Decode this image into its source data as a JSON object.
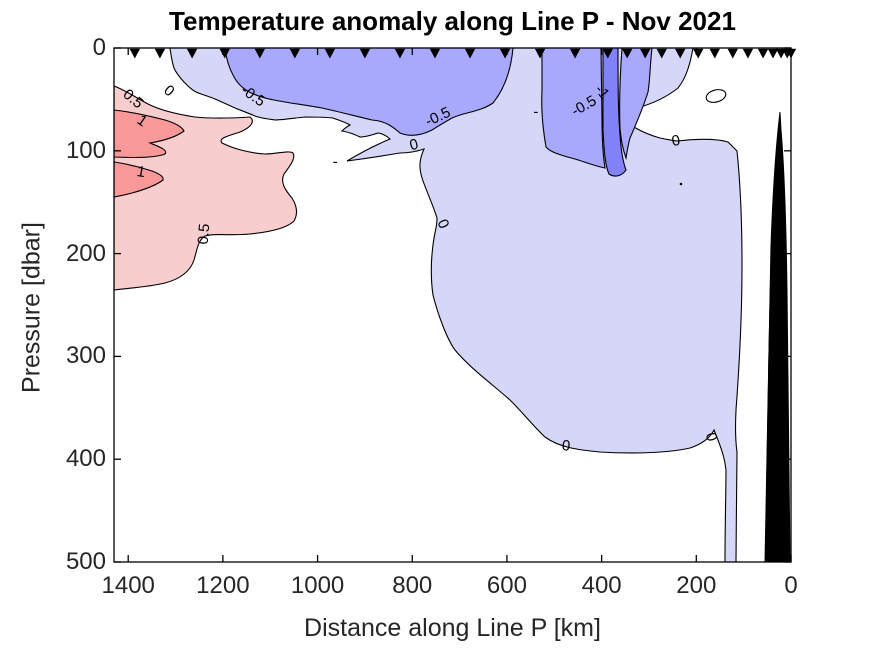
{
  "title": "Temperature anomaly along Line P - Nov 2021",
  "chart_data": {
    "type": "contour",
    "title": "Temperature anomaly along Line P - Nov 2021",
    "xlabel": "Distance along Line P [km]",
    "ylabel": "Pressure [dbar]",
    "xlim": [
      1430,
      0
    ],
    "ylim": [
      0,
      500
    ],
    "x_axis_reversed": true,
    "y_axis_reversed": true,
    "grid": false,
    "x_ticks": [
      1400,
      1200,
      1000,
      800,
      600,
      400,
      200,
      0
    ],
    "y_ticks": [
      0,
      100,
      200,
      300,
      400,
      500
    ],
    "contour_levels": [
      -1,
      -0.5,
      0,
      0.5,
      1
    ],
    "fill_bands": [
      {
        "range": "-1.5 to -1",
        "color": "#8181f8"
      },
      {
        "range": "-1 to -0.5",
        "color": "#a8a8fd"
      },
      {
        "range": "-0.5 to 0",
        "color": "#d6d6f9"
      },
      {
        "range": "0 to 0.5",
        "color": "#ffffff"
      },
      {
        "range": "0.5 to 1",
        "color": "#f8cdcd"
      },
      {
        "range": "1 to 1.5",
        "color": "#f89898"
      }
    ],
    "bathymetry_color": "#000000",
    "station_markers_km": [
      1386,
      1333,
      1265,
      1196,
      1122,
      1048,
      974,
      900,
      826,
      752,
      678,
      604,
      530,
      456,
      387,
      346,
      308,
      273,
      234,
      196,
      161,
      123,
      91,
      59,
      38,
      21,
      8,
      0
    ],
    "contour_labels": [
      {
        "text": "0.5",
        "km": 1390,
        "dbar": 50,
        "rot": 40
      },
      {
        "text": "1",
        "km": 1371,
        "dbar": 71,
        "rot": 35
      },
      {
        "text": "1",
        "km": 1373,
        "dbar": 121,
        "rot": 10
      },
      {
        "text": "0.5",
        "km": 1240,
        "dbar": 181,
        "rot": -85
      },
      {
        "text": "0",
        "km": 1314,
        "dbar": 42,
        "rot": 40
      },
      {
        "text": "-0.5",
        "km": 1136,
        "dbar": 47,
        "rot": 35
      },
      {
        "text": "-0.5",
        "km": 746,
        "dbar": 67,
        "rot": -25
      },
      {
        "text": "-",
        "km": 539,
        "dbar": 62,
        "rot": 0
      },
      {
        "text": "-0.5",
        "km": 437,
        "dbar": 56,
        "rot": -30
      },
      {
        "text": "-1",
        "km": 399,
        "dbar": 43,
        "rot": 50
      },
      {
        "text": "0",
        "km": 796,
        "dbar": 94,
        "rot": -15
      },
      {
        "text": "0",
        "km": 243,
        "dbar": 90,
        "rot": -10
      },
      {
        "text": "0",
        "km": 735,
        "dbar": 171,
        "rot": 65
      },
      {
        "text": "0",
        "km": 475,
        "dbar": 387,
        "rot": 5
      },
      {
        "text": "0",
        "km": 169,
        "dbar": 378,
        "rot": 75
      },
      {
        "text": "-",
        "km": 963,
        "dbar": 111,
        "rot": 0
      }
    ]
  }
}
